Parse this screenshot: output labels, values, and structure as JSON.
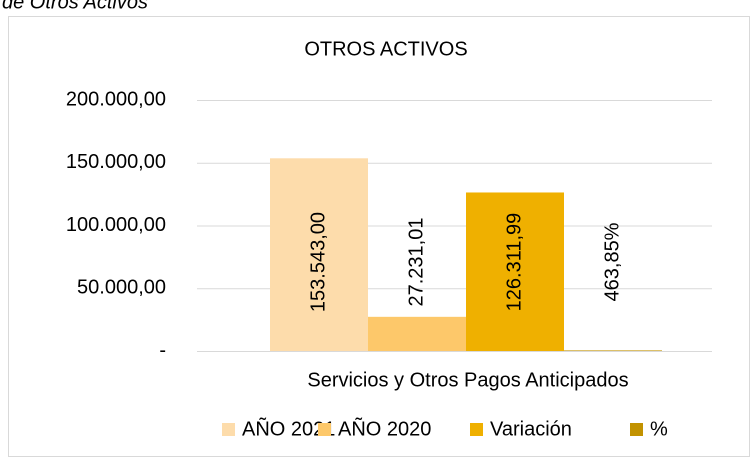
{
  "caption": "de Otros Activos",
  "chart_data": {
    "type": "bar",
    "title": "OTROS ACTIVOS",
    "categories": [
      "Servicios y Otros Pagos Anticipados"
    ],
    "series": [
      {
        "name": "AÑO 2021",
        "color": "#fddcab",
        "values": [
          153543.0
        ],
        "value_labels": [
          "153.543,00"
        ]
      },
      {
        "name": "AÑO 2020",
        "color": "#fdc86a",
        "values": [
          27231.01
        ],
        "value_labels": [
          "27.231,01"
        ]
      },
      {
        "name": "Variación",
        "color": "#efb000",
        "values": [
          126311.99
        ],
        "value_labels": [
          "126.311,99"
        ]
      },
      {
        "name": "%",
        "color": "#c29200",
        "values": [
          463.85
        ],
        "value_labels": [
          "463,85%"
        ]
      }
    ],
    "ylim": [
      0,
      200000
    ],
    "yticks": [
      {
        "value": 0,
        "label": "-"
      },
      {
        "value": 50000,
        "label": "50.000,00"
      },
      {
        "value": 100000,
        "label": "100.000,00"
      },
      {
        "value": 150000,
        "label": "150.000,00"
      },
      {
        "value": 200000,
        "label": "200.000,00"
      }
    ],
    "grid": true,
    "legend": "bottom"
  }
}
